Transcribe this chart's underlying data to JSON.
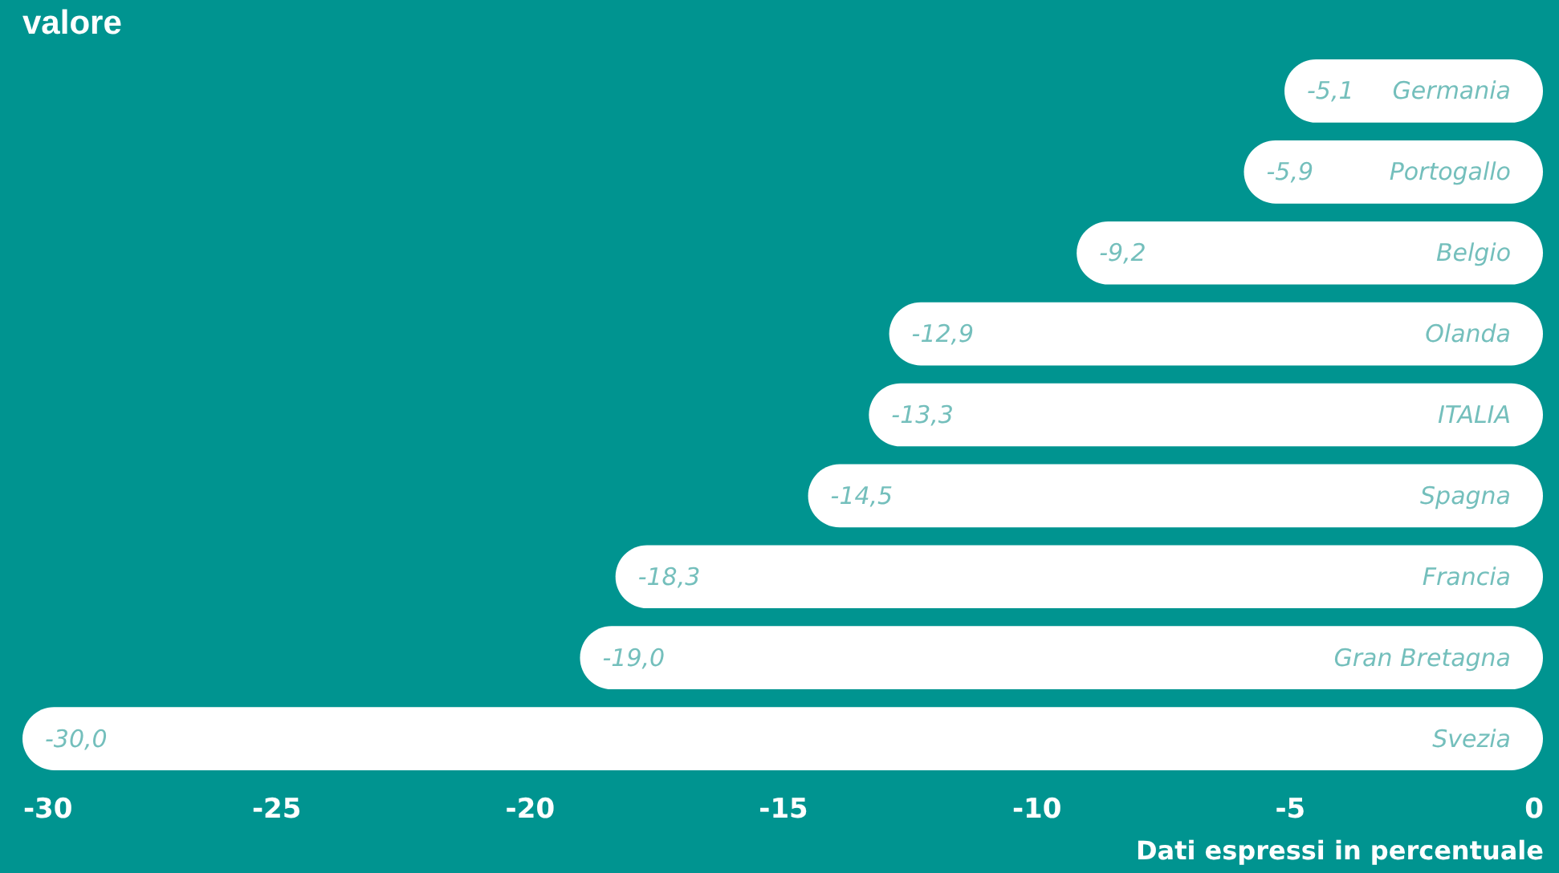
{
  "chart_data": {
    "type": "bar",
    "orientation": "horizontal",
    "title": "valore",
    "xlabel": "Dati espressi in percentuale",
    "categories": [
      "Germania",
      "Portogallo",
      "Belgio",
      "Olanda",
      "ITALIA",
      "Spagna",
      "Francia",
      "Gran Bretagna",
      "Svezia"
    ],
    "values": [
      -5.1,
      -5.9,
      -9.2,
      -12.9,
      -13.3,
      -14.5,
      -18.3,
      -19.0,
      -30.0
    ],
    "value_labels": [
      "-5,1",
      "-5,9",
      "-9,2",
      "-12,9",
      "-13,3",
      "-14,5",
      "-18,3",
      "-19,0",
      "-30,0"
    ],
    "color": "#ffffff",
    "xlim": [
      -30,
      0
    ],
    "xticks": [
      -30,
      -25,
      -20,
      -15,
      -10,
      -5,
      0
    ],
    "grid": false
  }
}
